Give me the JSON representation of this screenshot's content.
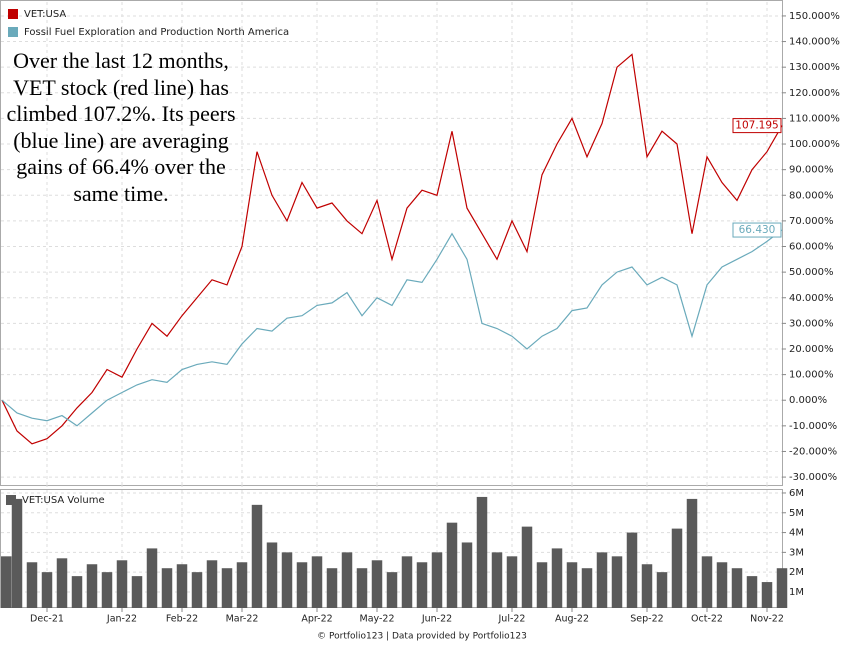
{
  "chart_data": [
    {
      "type": "line",
      "annotation": "Over the last 12 months, VET stock (red line) has climbed 107.2%. Its peers (blue line) are averaging gains of 66.4% over the same time.",
      "legend": "upper left",
      "grid": true,
      "ylim": [
        -32.7,
        153.1
      ],
      "yticks": [
        {
          "value": 150,
          "label": "150.000%"
        },
        {
          "value": 140,
          "label": "140.000%"
        },
        {
          "value": 130,
          "label": "130.000%"
        },
        {
          "value": 120,
          "label": "120.000%"
        },
        {
          "value": 110,
          "label": "110.000%"
        },
        {
          "value": 100,
          "label": "100.000%"
        },
        {
          "value": 90,
          "label": "90.000%"
        },
        {
          "value": 80,
          "label": "80.000%"
        },
        {
          "value": 70,
          "label": "70.000%"
        },
        {
          "value": 60,
          "label": "60.000%"
        },
        {
          "value": 50,
          "label": "50.000%"
        },
        {
          "value": 40,
          "label": "40.000%"
        },
        {
          "value": 30,
          "label": "30.000%"
        },
        {
          "value": 20,
          "label": "20.000%"
        },
        {
          "value": 10,
          "label": "10.000%"
        },
        {
          "value": 0,
          "label": "0.000%"
        },
        {
          "value": -10,
          "label": "-10.000%"
        },
        {
          "value": -20,
          "label": "-20.000%"
        },
        {
          "value": -30,
          "label": "-30.000%"
        }
      ],
      "series": [
        {
          "name": "VET:USA",
          "color": "#c00000",
          "values": [
            0,
            -12,
            -17,
            -15,
            -10,
            -3,
            3,
            12,
            9,
            20,
            30,
            25,
            33,
            40,
            47,
            45,
            60,
            97,
            80,
            70,
            85,
            75,
            77,
            70,
            65,
            78,
            55,
            75,
            82,
            80,
            105,
            75,
            65,
            55,
            70,
            58,
            88,
            100,
            110,
            95,
            108,
            130,
            135,
            95,
            105,
            100,
            65,
            95,
            85,
            78,
            90,
            97,
            107.195
          ],
          "value_labels": [
            null,
            null,
            null,
            null,
            null,
            null,
            null,
            null,
            null,
            null,
            null,
            null,
            null,
            null,
            null,
            null,
            null,
            null,
            null,
            null,
            null,
            null,
            null,
            null,
            null,
            null,
            null,
            null,
            null,
            null,
            null,
            null,
            null,
            null,
            null,
            null,
            null,
            null,
            null,
            null,
            null,
            null,
            null,
            null,
            null,
            null,
            null,
            null,
            null,
            null,
            null,
            null,
            "107.195"
          ]
        },
        {
          "name": "Fossil Fuel Exploration and Production North America",
          "color": "#6aaabb",
          "values": [
            0,
            -5,
            -7,
            -8,
            -6,
            -10,
            -5,
            0,
            3,
            6,
            8,
            7,
            12,
            14,
            15,
            14,
            22,
            28,
            27,
            32,
            33,
            37,
            38,
            42,
            33,
            40,
            37,
            47,
            46,
            55,
            65,
            55,
            30,
            28,
            25,
            20,
            25,
            28,
            35,
            36,
            45,
            50,
            52,
            45,
            48,
            45,
            25,
            45,
            52,
            55,
            58,
            62,
            66.43
          ],
          "value_labels": [
            null,
            null,
            null,
            null,
            null,
            null,
            null,
            null,
            null,
            null,
            null,
            null,
            null,
            null,
            null,
            null,
            null,
            null,
            null,
            null,
            null,
            null,
            null,
            null,
            null,
            null,
            null,
            null,
            null,
            null,
            null,
            null,
            null,
            null,
            null,
            null,
            null,
            null,
            null,
            null,
            null,
            null,
            null,
            null,
            null,
            null,
            null,
            null,
            null,
            null,
            null,
            null,
            "66.430"
          ]
        }
      ]
    },
    {
      "type": "bar",
      "title": "VET:USA Volume",
      "color": "#5a5a5a",
      "grid": true,
      "categories": [
        null,
        null,
        null,
        "Dec-21",
        null,
        null,
        null,
        null,
        "Jan-22",
        null,
        null,
        null,
        "Feb-22",
        null,
        null,
        null,
        "Mar-22",
        null,
        null,
        null,
        null,
        "Apr-22",
        null,
        null,
        null,
        "May-22",
        null,
        null,
        null,
        "Jun-22",
        null,
        null,
        null,
        null,
        "Jul-22",
        null,
        null,
        null,
        "Aug-22",
        null,
        null,
        null,
        null,
        "Sep-22",
        null,
        null,
        null,
        "Oct-22",
        null,
        null,
        null,
        "Nov-22",
        null
      ],
      "values": [
        2.8,
        5.7,
        2.5,
        2.0,
        2.7,
        1.8,
        2.4,
        2.0,
        2.6,
        1.8,
        3.2,
        2.2,
        2.4,
        2.0,
        2.6,
        2.2,
        2.5,
        5.4,
        3.5,
        3.0,
        2.5,
        2.8,
        2.2,
        3.0,
        2.2,
        2.6,
        2.0,
        2.8,
        2.5,
        3.0,
        4.5,
        3.5,
        5.8,
        3.0,
        2.8,
        4.3,
        2.5,
        3.2,
        2.5,
        2.2,
        3.0,
        2.8,
        4.0,
        2.4,
        2.0,
        4.2,
        5.7,
        2.8,
        2.5,
        2.2,
        1.8,
        1.5,
        2.2
      ],
      "ylim": [
        0.19,
        6.15
      ],
      "yticks": [
        {
          "value": 6,
          "label": "6M"
        },
        {
          "value": 5,
          "label": "5M"
        },
        {
          "value": 4,
          "label": "4M"
        },
        {
          "value": 3,
          "label": "3M"
        },
        {
          "value": 2,
          "label": "2M"
        },
        {
          "value": 1,
          "label": "1M"
        }
      ]
    }
  ],
  "footer": "© Portfolio123 | Data provided by Portfolio123"
}
